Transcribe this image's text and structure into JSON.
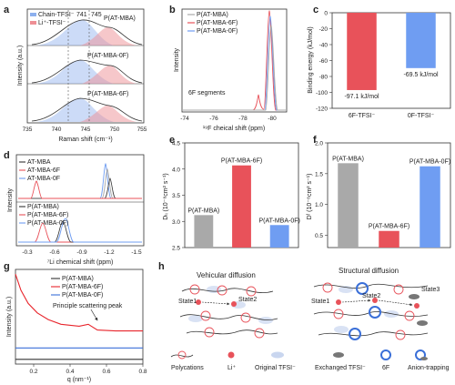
{
  "colors": {
    "red": "#e8525a",
    "blue": "#6f9df2",
    "gray": "#a9a9a9",
    "black": "#333333"
  },
  "panels": {
    "a": {
      "letter": "a",
      "xlabel": "Raman shift (cm⁻¹)",
      "ylabel": "Intensity (a.u.)",
      "xticks": [
        "735",
        "740",
        "745",
        "750",
        "755"
      ],
      "legend": [
        "Chain-TFSI⁻",
        "Li⁺-TFSI⁻"
      ],
      "markers": [
        "741",
        "745"
      ],
      "curve_labels": [
        "P(AT-MBA)",
        "P(AT-MBA-0F)",
        "P(AT-MBA-6F)"
      ]
    },
    "b": {
      "letter": "b",
      "xlabel": "¹⁹F cheical shift (ppm)",
      "ylabel": "Intensity",
      "xticks": [
        "-74",
        "-76",
        "-78",
        "-80"
      ],
      "legend": [
        "P(AT-MBA)",
        "P(AT-MBA-6F)",
        "P(AT-MBA-0F)"
      ],
      "annotation": "6F segments"
    },
    "c": {
      "letter": "c",
      "ylabel": "Binding energy (kJ/mol)",
      "yticks": [
        "0",
        "-20",
        "-40",
        "-60",
        "-80",
        "-100",
        "-120"
      ]
    },
    "d": {
      "letter": "d",
      "xlabel": "⁷Li chemical shift (ppm)",
      "ylabel": "Intensity",
      "xticks": [
        "-0.3",
        "-0.6",
        "-0.9",
        "-1.2",
        "-1.5"
      ],
      "legend_top": [
        "AT-MBA",
        "AT-MBA-6F",
        "AT-MBA-0F"
      ],
      "legend_bottom": [
        "P(AT-MBA)",
        "P(AT-MBA-6F)",
        "P(AT-MBA-0F)"
      ]
    },
    "e": {
      "letter": "e",
      "ylabel": "Dₗᵢ (10⁻⁸cm² s⁻¹)",
      "yticks": [
        "2.5",
        "3.0",
        "3.5",
        "4.0",
        "4.5"
      ]
    },
    "f": {
      "letter": "f",
      "ylabel": "Dᶠ (10⁻⁸cm² s⁻¹)",
      "yticks": [
        "0.5",
        "1.0",
        "1.5",
        "2.0"
      ]
    },
    "g": {
      "letter": "g",
      "xlabel": "q (nm⁻¹)",
      "ylabel": "Intensity (a.u.)",
      "xticks": [
        "0.2",
        "0.4",
        "0.6",
        "0.8"
      ],
      "legend": [
        "P(AT-MBA)",
        "P(AT-MBA-6F)",
        "P(AT-MBA-0F)"
      ],
      "annotation": "Principle scattering peak"
    },
    "h": {
      "letter": "h",
      "left_title": "Vehicular diffusion",
      "right_title": "Structural diffusion",
      "states": [
        "State1",
        "State2",
        "State1",
        "State2",
        "State3"
      ],
      "legend": [
        "Polycations",
        "Li⁺",
        "Original TFSI⁻",
        "Exchanged TFSI⁻",
        "6F",
        "Anion-trapping"
      ]
    }
  },
  "chart_data": [
    {
      "panel": "c",
      "type": "bar",
      "categories": [
        "6F-TFSI⁻",
        "0F-TFSI⁻"
      ],
      "values": [
        -97.1,
        -69.5
      ],
      "data_labels": [
        "-97.1 kJ/mol",
        "-69.5 kJ/mol"
      ],
      "ylabel": "Binding energy (kJ/mol)",
      "ylim": [
        -120,
        0
      ]
    },
    {
      "panel": "e",
      "type": "bar",
      "categories": [
        "P(AT-MBA)",
        "P(AT-MBA-6F)",
        "P(AT-MBA-0F)"
      ],
      "values": [
        3.12,
        4.07,
        2.93
      ],
      "ylim": [
        2.5,
        4.5
      ]
    },
    {
      "panel": "f",
      "type": "bar",
      "categories": [
        "P(AT-MBA)",
        "P(AT-MBA-6F)",
        "P(AT-MBA-0F)"
      ],
      "values": [
        1.67,
        0.57,
        1.62
      ],
      "ylim": [
        0.3,
        2.0
      ]
    },
    {
      "panel": "g",
      "type": "line",
      "xlim": [
        0.1,
        0.8
      ],
      "series": [
        {
          "name": "P(AT-MBA)",
          "x": [
            0.1,
            0.8
          ],
          "y": [
            0.05,
            0.05
          ]
        },
        {
          "name": "P(AT-MBA-6F)",
          "x": [
            0.1,
            0.13,
            0.17,
            0.22,
            0.28,
            0.35,
            0.45,
            0.5,
            0.55,
            0.65,
            0.8
          ],
          "y": [
            0.95,
            0.78,
            0.64,
            0.54,
            0.47,
            0.42,
            0.4,
            0.42,
            0.36,
            0.35,
            0.35
          ]
        },
        {
          "name": "P(AT-MBA-0F)",
          "x": [
            0.1,
            0.8
          ],
          "y": [
            0.17,
            0.17
          ]
        }
      ]
    }
  ]
}
